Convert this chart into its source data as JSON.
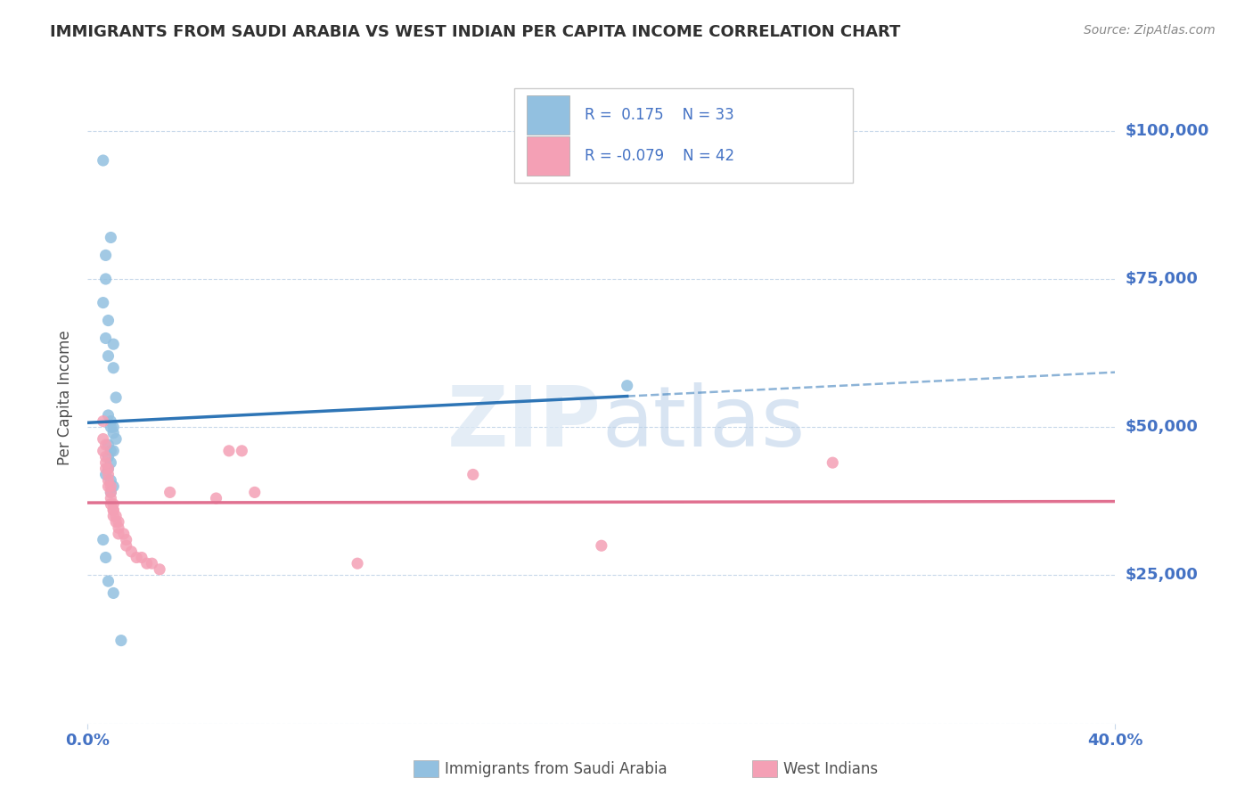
{
  "title": "IMMIGRANTS FROM SAUDI ARABIA VS WEST INDIAN PER CAPITA INCOME CORRELATION CHART",
  "source": "Source: ZipAtlas.com",
  "ylabel": "Per Capita Income",
  "xlim": [
    0.0,
    0.4
  ],
  "ylim": [
    0,
    110000
  ],
  "yticks": [
    0,
    25000,
    50000,
    75000,
    100000
  ],
  "ytick_labels": [
    "",
    "$25,000",
    "$50,000",
    "$75,000",
    "$100,000"
  ],
  "watermark": "ZIPatlas",
  "blue_color": "#92c0e0",
  "pink_color": "#f4a0b5",
  "line_blue": "#2e75b6",
  "line_pink": "#e07090",
  "title_color": "#303030",
  "axis_label_color": "#505050",
  "tick_color": "#4472c4",
  "grid_color": "#c8d8ea",
  "background": "#ffffff",
  "saudi_x": [
    0.006,
    0.009,
    0.006,
    0.007,
    0.008,
    0.007,
    0.007,
    0.008,
    0.01,
    0.01,
    0.011,
    0.008,
    0.009,
    0.009,
    0.01,
    0.01,
    0.011,
    0.008,
    0.009,
    0.01,
    0.008,
    0.009,
    0.008,
    0.007,
    0.009,
    0.01,
    0.009,
    0.006,
    0.007,
    0.008,
    0.21,
    0.01,
    0.013
  ],
  "saudi_y": [
    95000,
    82000,
    71000,
    65000,
    62000,
    79000,
    75000,
    68000,
    64000,
    60000,
    55000,
    52000,
    51000,
    50000,
    50000,
    49000,
    48000,
    47000,
    46000,
    46000,
    45000,
    44000,
    43000,
    42000,
    41000,
    40000,
    39000,
    31000,
    28000,
    24000,
    57000,
    22000,
    14000
  ],
  "westind_x": [
    0.006,
    0.006,
    0.007,
    0.006,
    0.007,
    0.007,
    0.007,
    0.008,
    0.008,
    0.008,
    0.008,
    0.009,
    0.009,
    0.009,
    0.009,
    0.01,
    0.01,
    0.01,
    0.01,
    0.011,
    0.011,
    0.012,
    0.012,
    0.012,
    0.014,
    0.015,
    0.015,
    0.017,
    0.019,
    0.021,
    0.023,
    0.025,
    0.028,
    0.032,
    0.05,
    0.055,
    0.06,
    0.065,
    0.105,
    0.15,
    0.2,
    0.29
  ],
  "westind_y": [
    51000,
    48000,
    47000,
    46000,
    45000,
    44000,
    43000,
    43000,
    42000,
    41000,
    40000,
    40000,
    39000,
    38000,
    37000,
    37000,
    36000,
    36000,
    35000,
    35000,
    34000,
    34000,
    33000,
    32000,
    32000,
    31000,
    30000,
    29000,
    28000,
    28000,
    27000,
    27000,
    26000,
    39000,
    38000,
    46000,
    46000,
    39000,
    27000,
    42000,
    30000,
    44000
  ]
}
